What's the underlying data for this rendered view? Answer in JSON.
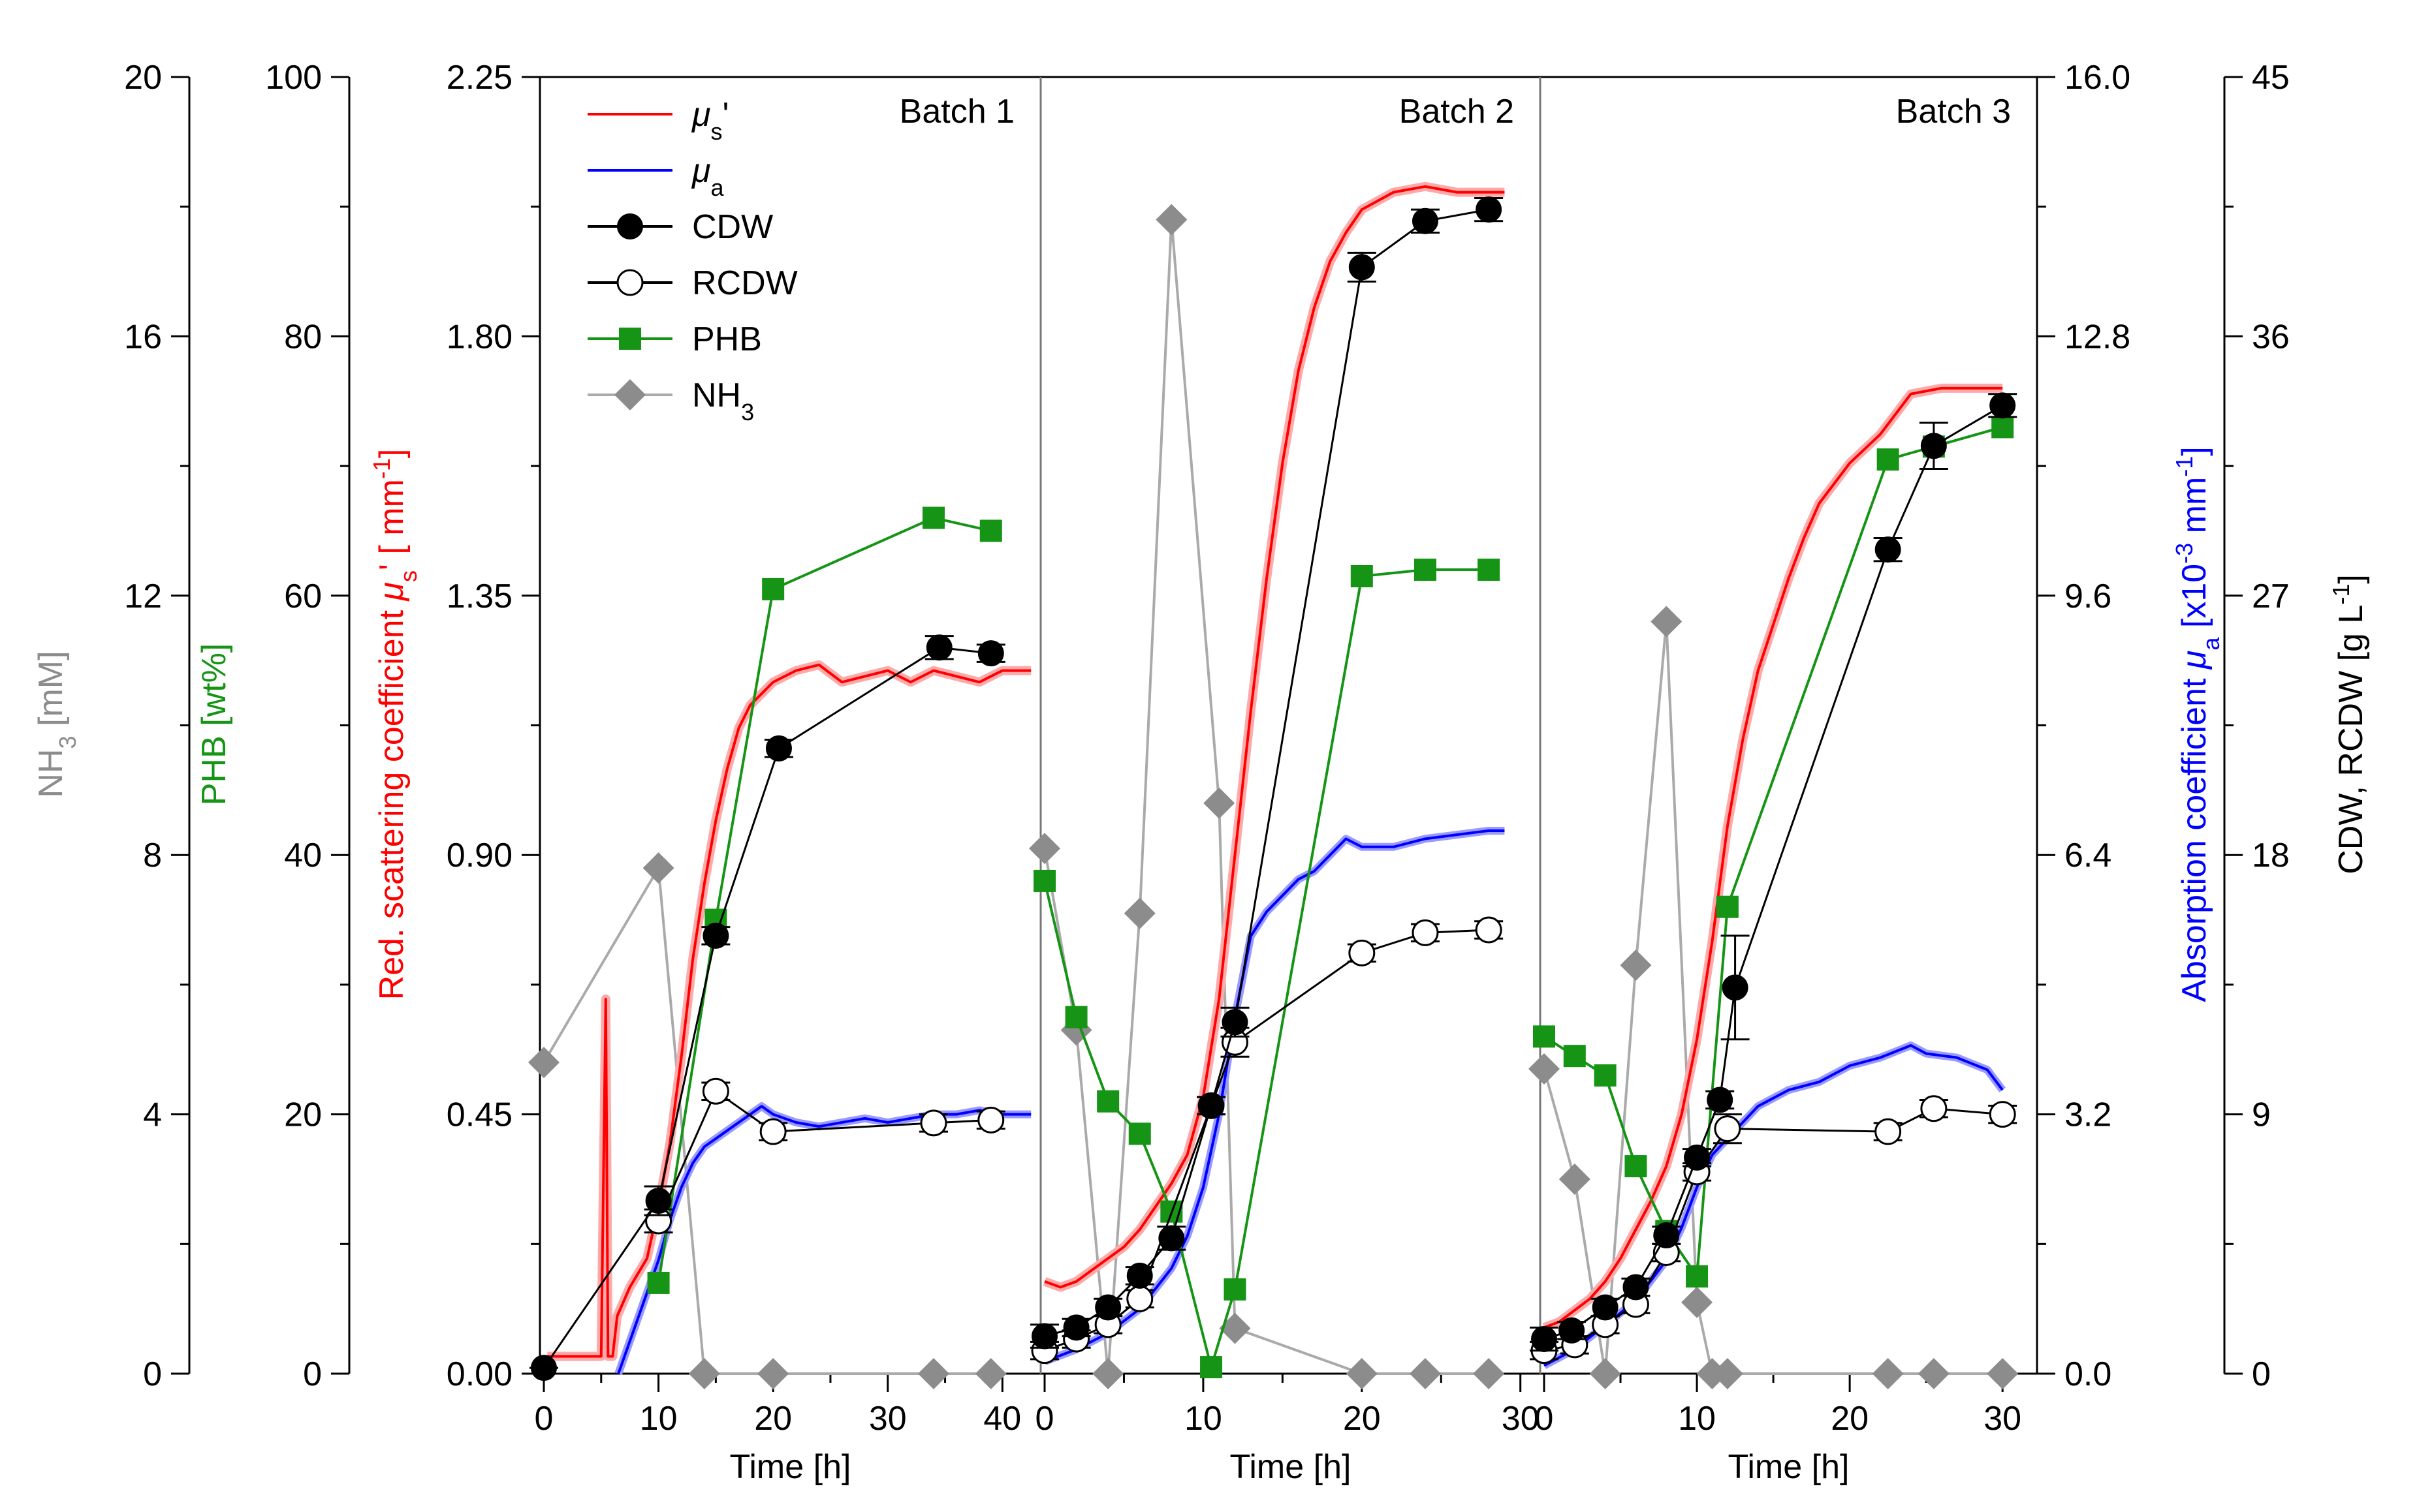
{
  "chart_data": {
    "type": "line",
    "figure": "Multi-panel fermentation time course: optical coefficients and offline biomass data",
    "legend": {
      "placement": "top-left of Batch 1 panel",
      "entries": [
        {
          "key": "mu_s",
          "symbol": "μ",
          "sub": "s",
          "suffix": "'",
          "color": "#ff0000",
          "marker": "line"
        },
        {
          "key": "mu_a",
          "symbol": "μ",
          "sub": "a",
          "suffix": "",
          "color": "#0000ff",
          "marker": "line"
        },
        {
          "key": "cdw",
          "label": "CDW",
          "color": "#000000",
          "marker": "filled-circle"
        },
        {
          "key": "rcdw",
          "label": "RCDW",
          "color": "#000000",
          "marker": "open-circle"
        },
        {
          "key": "phb",
          "label": "PHB",
          "color": "#159415",
          "marker": "square"
        },
        {
          "key": "nh3",
          "label": "NH",
          "sub": "3",
          "color": "#999999",
          "marker": "diamond"
        }
      ]
    },
    "axes": {
      "nh3": {
        "label_main": "NH",
        "label_sub": "3",
        "label_rest": " [mM]",
        "range": [
          0,
          20
        ],
        "ticks": [
          "0",
          "4",
          "8",
          "12",
          "16",
          "20"
        ],
        "color": "#8c8c8c"
      },
      "phb": {
        "label": "PHB [wt%]",
        "range": [
          0,
          100
        ],
        "ticks": [
          "0",
          "20",
          "40",
          "60",
          "80",
          "100"
        ],
        "color": "#159415"
      },
      "mus": {
        "label_main": "Red. scattering coefficient ",
        "label_sym": "μ",
        "label_sub": "s",
        "label_rest": "' [ mm",
        "label_sup": "-1",
        "label_end": "]",
        "range": [
          0,
          2.25
        ],
        "ticks": [
          "0.00",
          "0.45",
          "0.90",
          "1.35",
          "1.80",
          "2.25"
        ],
        "color": "#ff0000"
      },
      "mua": {
        "label_main": "Absorption coefficient ",
        "label_sym": "μ",
        "label_sub": "a",
        "label_rest": " [x10",
        "label_sup": "-3",
        "label_end": " mm",
        "label_sup2": "-1",
        "label_end2": "]",
        "range": [
          0,
          16
        ],
        "ticks": [
          "0.0",
          "3.2",
          "6.4",
          "9.6",
          "12.8",
          "16.0"
        ],
        "color": "#0000ff"
      },
      "cdw": {
        "label_main": "CDW, RCDW  [g L",
        "label_sup": "-1",
        "label_end": "]",
        "range": [
          0,
          45
        ],
        "ticks": [
          "0",
          "9",
          "18",
          "27",
          "36",
          "45"
        ],
        "color": "#000000"
      },
      "x": {
        "label": "Time [h]"
      }
    },
    "panels": [
      {
        "title": "Batch 1",
        "xlim": [
          0,
          43
        ],
        "xticks": [
          "0",
          "10",
          "20",
          "30",
          "40"
        ],
        "mu_s": [
          [
            0.3,
            0.03
          ],
          [
            5,
            0.03
          ],
          [
            5.4,
            0.65
          ],
          [
            5.6,
            0.03
          ],
          [
            6,
            0.03
          ],
          [
            6.4,
            0.1
          ],
          [
            7.5,
            0.15
          ],
          [
            9,
            0.2
          ],
          [
            10,
            0.29
          ],
          [
            11,
            0.4
          ],
          [
            12,
            0.55
          ],
          [
            13,
            0.72
          ],
          [
            14,
            0.85
          ],
          [
            15,
            0.96
          ],
          [
            16,
            1.05
          ],
          [
            17,
            1.12
          ],
          [
            18,
            1.16
          ],
          [
            19,
            1.18
          ],
          [
            20,
            1.2
          ],
          [
            22,
            1.22
          ],
          [
            24,
            1.23
          ],
          [
            26,
            1.2
          ],
          [
            28,
            1.21
          ],
          [
            30,
            1.22
          ],
          [
            32,
            1.2
          ],
          [
            34,
            1.22
          ],
          [
            36,
            1.21
          ],
          [
            38,
            1.2
          ],
          [
            40,
            1.22
          ],
          [
            42.5,
            1.22
          ]
        ],
        "mu_a": [
          [
            6.5,
            0.0
          ],
          [
            7,
            0.2
          ],
          [
            8,
            0.6
          ],
          [
            9,
            1.0
          ],
          [
            10,
            1.4
          ],
          [
            11,
            1.9
          ],
          [
            12,
            2.3
          ],
          [
            13,
            2.6
          ],
          [
            14,
            2.8
          ],
          [
            15,
            2.9
          ],
          [
            16,
            3.0
          ],
          [
            17,
            3.1
          ],
          [
            18,
            3.2
          ],
          [
            19,
            3.3
          ],
          [
            20,
            3.2
          ],
          [
            22,
            3.1
          ],
          [
            24,
            3.05
          ],
          [
            26,
            3.1
          ],
          [
            28,
            3.15
          ],
          [
            30,
            3.1
          ],
          [
            32,
            3.15
          ],
          [
            34,
            3.2
          ],
          [
            36,
            3.2
          ],
          [
            38,
            3.25
          ],
          [
            40,
            3.2
          ],
          [
            42.5,
            3.2
          ]
        ],
        "cdw": [
          [
            0,
            0.2,
            0
          ],
          [
            10,
            6.0,
            0.5
          ],
          [
            15,
            15.2,
            0.3
          ],
          [
            20.5,
            21.7,
            0.3
          ],
          [
            34.5,
            25.2,
            0.4
          ],
          [
            39,
            25.0,
            0.3
          ]
        ],
        "rcdw": [
          [
            10,
            5.3,
            0.4
          ],
          [
            15,
            9.8,
            0.3
          ],
          [
            20,
            8.4,
            0.3
          ],
          [
            34,
            8.7,
            0.3
          ],
          [
            39,
            8.8,
            0.3
          ]
        ],
        "phb": [
          [
            10,
            7.0
          ],
          [
            15,
            35.0
          ],
          [
            20,
            60.5
          ],
          [
            34,
            66.0
          ],
          [
            39,
            65.0
          ]
        ],
        "nh3": [
          [
            0,
            4.8
          ],
          [
            10,
            7.8
          ],
          [
            14,
            0.0
          ],
          [
            20,
            0.0
          ],
          [
            34,
            0.0
          ],
          [
            39,
            0.0
          ]
        ]
      },
      {
        "title": "Batch 2",
        "xlim": [
          0,
          31
        ],
        "xticks": [
          "0",
          "10",
          "20",
          "30"
        ],
        "mu_s": [
          [
            0,
            0.16
          ],
          [
            1,
            0.15
          ],
          [
            2,
            0.16
          ],
          [
            3,
            0.18
          ],
          [
            4,
            0.2
          ],
          [
            5,
            0.22
          ],
          [
            6,
            0.25
          ],
          [
            7,
            0.29
          ],
          [
            8,
            0.33
          ],
          [
            9,
            0.38
          ],
          [
            10,
            0.48
          ],
          [
            11,
            0.65
          ],
          [
            12,
            0.9
          ],
          [
            13,
            1.15
          ],
          [
            14,
            1.38
          ],
          [
            15,
            1.58
          ],
          [
            16,
            1.74
          ],
          [
            17,
            1.85
          ],
          [
            18,
            1.93
          ],
          [
            19,
            1.98
          ],
          [
            20,
            2.02
          ],
          [
            22,
            2.05
          ],
          [
            24,
            2.06
          ],
          [
            26,
            2.05
          ],
          [
            28,
            2.05
          ],
          [
            29,
            2.05
          ]
        ],
        "mu_a": [
          [
            0,
            0.15
          ],
          [
            2,
            0.3
          ],
          [
            4,
            0.5
          ],
          [
            6,
            0.8
          ],
          [
            8,
            1.3
          ],
          [
            9,
            1.7
          ],
          [
            10,
            2.3
          ],
          [
            11,
            3.2
          ],
          [
            12,
            4.4
          ],
          [
            13,
            5.4
          ],
          [
            14,
            5.7
          ],
          [
            15,
            5.9
          ],
          [
            16,
            6.1
          ],
          [
            17,
            6.2
          ],
          [
            18,
            6.4
          ],
          [
            19,
            6.6
          ],
          [
            20,
            6.5
          ],
          [
            22,
            6.5
          ],
          [
            24,
            6.6
          ],
          [
            26,
            6.65
          ],
          [
            28,
            6.7
          ],
          [
            29,
            6.7
          ]
        ],
        "cdw": [
          [
            0,
            1.3,
            0.4
          ],
          [
            2,
            1.6,
            0.3
          ],
          [
            4,
            2.3,
            0.3
          ],
          [
            6,
            3.4,
            0.3
          ],
          [
            8,
            4.7,
            0.4
          ],
          [
            10.5,
            9.3,
            0.3
          ],
          [
            12,
            12.2,
            0.5
          ],
          [
            20,
            38.4,
            0.5
          ],
          [
            24,
            40.0,
            0.4
          ],
          [
            28,
            40.4,
            0.4
          ]
        ],
        "rcdw": [
          [
            0,
            0.8,
            0.3
          ],
          [
            2,
            1.2,
            0.3
          ],
          [
            4,
            1.7,
            0.3
          ],
          [
            6,
            2.6,
            0.3
          ],
          [
            10.5,
            9.3,
            0.3
          ],
          [
            12,
            11.5,
            0.5
          ],
          [
            20,
            14.6,
            0.3
          ],
          [
            24,
            15.3,
            0.3
          ],
          [
            28,
            15.4,
            0.3
          ]
        ],
        "phb": [
          [
            0,
            38.0
          ],
          [
            2,
            27.5
          ],
          [
            4,
            21.0
          ],
          [
            6,
            18.5
          ],
          [
            8,
            12.5
          ],
          [
            10.5,
            0.5
          ],
          [
            12,
            6.5
          ],
          [
            20,
            61.5
          ],
          [
            24,
            62.0
          ],
          [
            28,
            62.0
          ]
        ],
        "nh3": [
          [
            0,
            8.1
          ],
          [
            2,
            5.3
          ],
          [
            4,
            0.0
          ],
          [
            6,
            7.1
          ],
          [
            8,
            17.8
          ],
          [
            11,
            8.8
          ],
          [
            12,
            0.7
          ],
          [
            20,
            0.0
          ],
          [
            24,
            0.0
          ],
          [
            28,
            0.0
          ]
        ]
      },
      {
        "title": "Batch 3",
        "xlim": [
          0,
          32
        ],
        "xticks": [
          "0",
          "10",
          "20",
          "30"
        ],
        "mu_s": [
          [
            0,
            0.08
          ],
          [
            1,
            0.09
          ],
          [
            2,
            0.11
          ],
          [
            3,
            0.13
          ],
          [
            4,
            0.16
          ],
          [
            5,
            0.2
          ],
          [
            6,
            0.25
          ],
          [
            7,
            0.3
          ],
          [
            8,
            0.36
          ],
          [
            9,
            0.45
          ],
          [
            10,
            0.58
          ],
          [
            11,
            0.75
          ],
          [
            12,
            0.95
          ],
          [
            13,
            1.1
          ],
          [
            14,
            1.22
          ],
          [
            15,
            1.3
          ],
          [
            16,
            1.38
          ],
          [
            17,
            1.45
          ],
          [
            18,
            1.51
          ],
          [
            20,
            1.58
          ],
          [
            22,
            1.63
          ],
          [
            24,
            1.7
          ],
          [
            26,
            1.71
          ],
          [
            28,
            1.71
          ],
          [
            30,
            1.71
          ]
        ],
        "mu_a": [
          [
            0,
            0.1
          ],
          [
            2,
            0.3
          ],
          [
            4,
            0.6
          ],
          [
            6,
            0.9
          ],
          [
            8,
            1.4
          ],
          [
            9,
            1.8
          ],
          [
            10,
            2.3
          ],
          [
            11,
            2.7
          ],
          [
            12,
            2.9
          ],
          [
            13,
            3.1
          ],
          [
            14,
            3.3
          ],
          [
            16,
            3.5
          ],
          [
            18,
            3.6
          ],
          [
            20,
            3.8
          ],
          [
            22,
            3.9
          ],
          [
            24,
            4.05
          ],
          [
            25,
            3.95
          ],
          [
            27,
            3.9
          ],
          [
            29,
            3.75
          ],
          [
            30,
            3.5
          ]
        ],
        "cdw": [
          [
            0,
            1.2,
            0.4
          ],
          [
            1.8,
            1.5,
            0.3
          ],
          [
            4,
            2.3,
            0.3
          ],
          [
            6,
            3.0,
            0.3
          ],
          [
            8,
            4.8,
            0.3
          ],
          [
            10,
            7.5,
            0.3
          ],
          [
            11.5,
            9.5,
            0.3
          ],
          [
            12.5,
            13.4,
            1.8
          ],
          [
            22.5,
            28.6,
            0.4
          ],
          [
            25.5,
            32.2,
            0.8
          ],
          [
            30,
            33.6,
            0.4
          ]
        ],
        "rcdw": [
          [
            0,
            0.8,
            0.3
          ],
          [
            2,
            1.0,
            0.3
          ],
          [
            4,
            1.7,
            0.3
          ],
          [
            6,
            2.4,
            0.3
          ],
          [
            8,
            4.2,
            0.3
          ],
          [
            10,
            7.0,
            0.3
          ],
          [
            12,
            8.5,
            0.5
          ],
          [
            22.5,
            8.4,
            0.3
          ],
          [
            25.5,
            9.2,
            0.3
          ],
          [
            30,
            9.0,
            0.3
          ]
        ],
        "phb": [
          [
            0,
            26.0
          ],
          [
            2,
            24.5
          ],
          [
            4,
            23.0
          ],
          [
            6,
            16.0
          ],
          [
            8,
            11.0
          ],
          [
            10,
            7.5
          ],
          [
            12,
            36.0
          ],
          [
            22.5,
            70.5
          ],
          [
            25.5,
            71.5
          ],
          [
            30,
            73.0
          ]
        ],
        "nh3": [
          [
            0,
            4.7
          ],
          [
            2,
            3.0
          ],
          [
            4,
            0.0
          ],
          [
            6,
            6.3
          ],
          [
            8,
            11.6
          ],
          [
            10,
            1.1
          ],
          [
            11,
            0.0
          ],
          [
            12,
            0.0
          ],
          [
            22.5,
            0.0
          ],
          [
            25.5,
            0.0
          ],
          [
            30,
            0.0
          ]
        ]
      }
    ]
  }
}
